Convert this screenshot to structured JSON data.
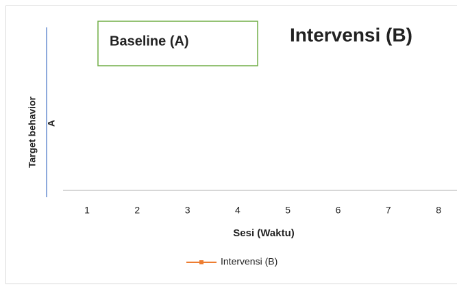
{
  "chart_data": {
    "type": "line",
    "annotations": [
      "Baseline  (A)",
      "Intervensi (B)"
    ],
    "y_label_lines": [
      "Target behavior",
      "A"
    ],
    "x_label": "Sesi (Waktu)",
    "categories": [
      "1",
      "2",
      "3",
      "4",
      "5",
      "6",
      "7",
      "8"
    ],
    "series": [
      {
        "name": "Intervensi (B)",
        "color": "#ed7d31",
        "values": [
          null,
          null,
          null,
          null,
          null,
          null,
          null,
          null
        ]
      }
    ],
    "legend": "bottom"
  }
}
